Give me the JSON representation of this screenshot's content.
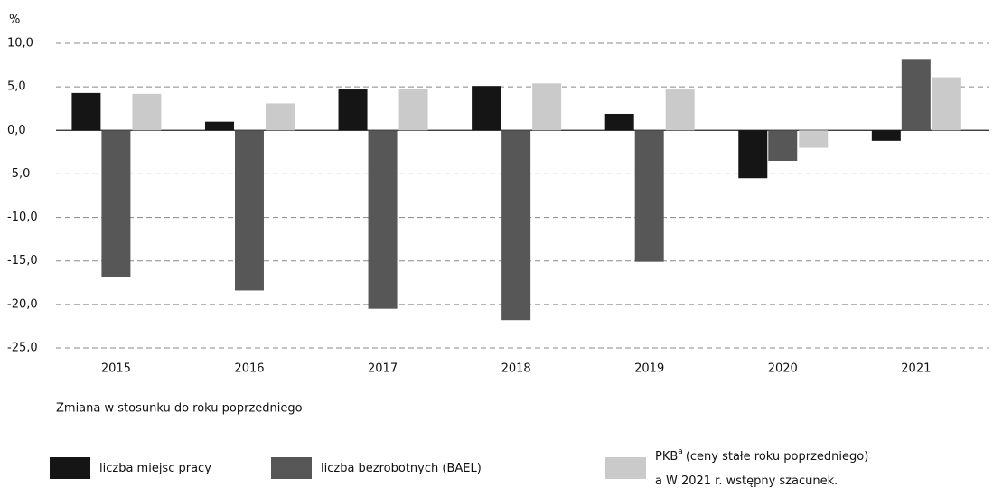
{
  "chart_data": {
    "type": "bar",
    "y_unit": "%",
    "x_label": "Zmiana w stosunku do roku poprzedniego",
    "categories": [
      "2015",
      "2016",
      "2017",
      "2018",
      "2019",
      "2020",
      "2021"
    ],
    "series": [
      {
        "name": "liczba miejsc pracy",
        "color": "#151515",
        "values": [
          4.3,
          1.0,
          4.7,
          5.1,
          1.9,
          -5.5,
          -1.2
        ]
      },
      {
        "name": "liczba bezrobotnych (BAEL)",
        "color": "#575757",
        "values": [
          -16.8,
          -18.4,
          -20.5,
          -21.8,
          -15.1,
          -3.5,
          8.2
        ]
      },
      {
        "name": "PKB",
        "legend_sup": "a",
        "legend_detail": "(ceny stałe roku poprzedniego)",
        "color": "#cacaca",
        "values": [
          4.2,
          3.1,
          4.8,
          5.4,
          4.7,
          -2.0,
          6.1
        ]
      }
    ],
    "footnote": {
      "marker": "a",
      "text": "W 2021 r. wstępny szacunek."
    },
    "ylim": [
      -25,
      10
    ],
    "yticks": [
      {
        "value": -25,
        "label": "-25,0"
      },
      {
        "value": -20,
        "label": "-20,0"
      },
      {
        "value": -15,
        "label": "-15,0"
      },
      {
        "value": -10,
        "label": "-10,0"
      },
      {
        "value": -5,
        "label": "-5,0"
      },
      {
        "value": 0,
        "label": "0,0"
      },
      {
        "value": 5,
        "label": "5,0"
      },
      {
        "value": 10,
        "label": "10,0"
      }
    ],
    "grid": true
  }
}
